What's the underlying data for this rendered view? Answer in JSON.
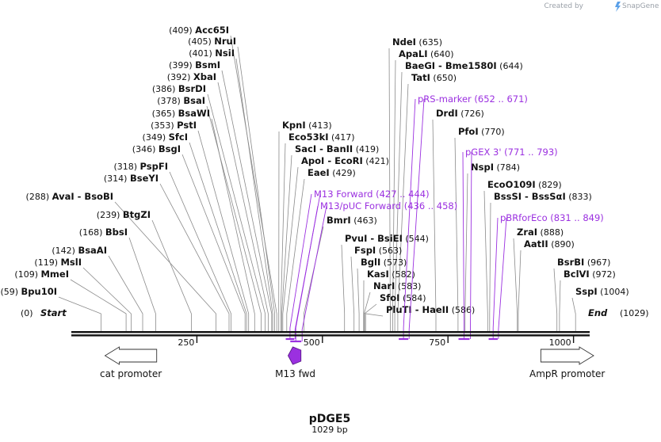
{
  "credit": {
    "prefix": "Created by",
    "brand": "SnapGene",
    "icon": "snapgene-logo-icon"
  },
  "plasmid": {
    "name": "pDGE5",
    "length_label": "1029 bp",
    "length": 1029
  },
  "ends": {
    "start_label": "Start",
    "start_pos": "(0)",
    "end_label": "End",
    "end_pos": "(1029)"
  },
  "scale_ticks": [
    250,
    500,
    750,
    1000
  ],
  "enzymes": [
    {
      "name": "Bpu10I",
      "pos": 59
    },
    {
      "name": "MmeI",
      "pos": 109
    },
    {
      "name": "MslI",
      "pos": 119
    },
    {
      "name": "BsaAI",
      "pos": 142
    },
    {
      "name": "BbsI",
      "pos": 168
    },
    {
      "name": "BtgZI",
      "pos": 239
    },
    {
      "name": "AvaI - BsoBI",
      "pos": 288
    },
    {
      "name": "BseYI",
      "pos": 314
    },
    {
      "name": "PspFI",
      "pos": 318
    },
    {
      "name": "BsgI",
      "pos": 346
    },
    {
      "name": "SfcI",
      "pos": 349
    },
    {
      "name": "PstI",
      "pos": 353
    },
    {
      "name": "BsaWI",
      "pos": 365
    },
    {
      "name": "BsaI",
      "pos": 378
    },
    {
      "name": "BsrDI",
      "pos": 386
    },
    {
      "name": "XbaI",
      "pos": 392
    },
    {
      "name": "BsmI",
      "pos": 399
    },
    {
      "name": "NsiI",
      "pos": 401
    },
    {
      "name": "NruI",
      "pos": 405
    },
    {
      "name": "Acc65I",
      "pos": 409
    },
    {
      "name": "KpnI",
      "pos": 413
    },
    {
      "name": "Eco53kI",
      "pos": 417
    },
    {
      "name": "SacI - BanII",
      "pos": 419
    },
    {
      "name": "ApoI - EcoRI",
      "pos": 421
    },
    {
      "name": "EaeI",
      "pos": 429
    },
    {
      "name": "BmrI",
      "pos": 463
    },
    {
      "name": "PvuI - BsiEI",
      "pos": 544
    },
    {
      "name": "FspI",
      "pos": 563
    },
    {
      "name": "BglI",
      "pos": 573
    },
    {
      "name": "KasI",
      "pos": 582
    },
    {
      "name": "NarI",
      "pos": 583
    },
    {
      "name": "SfoI",
      "pos": 584
    },
    {
      "name": "PluTI - HaeII",
      "pos": 586
    },
    {
      "name": "NdeI",
      "pos": 635
    },
    {
      "name": "ApaLI",
      "pos": 640
    },
    {
      "name": "BaeGI - Bme1580I",
      "pos": 644
    },
    {
      "name": "TatI",
      "pos": 650
    },
    {
      "name": "DrdI",
      "pos": 726
    },
    {
      "name": "PfoI",
      "pos": 770
    },
    {
      "name": "NspI",
      "pos": 784
    },
    {
      "name": "EcoO109I",
      "pos": 829
    },
    {
      "name": "BssSI - BssSαI",
      "pos": 833
    },
    {
      "name": "ZraI",
      "pos": 888
    },
    {
      "name": "AatII",
      "pos": 890
    },
    {
      "name": "BsrBI",
      "pos": 967
    },
    {
      "name": "BclVI",
      "pos": 972
    },
    {
      "name": "SspI",
      "pos": 1004
    }
  ],
  "primers": [
    {
      "name": "M13 Forward",
      "range": "(427 .. 444)",
      "start": 427,
      "end": 444
    },
    {
      "name": "M13/pUC Forward",
      "range": "(436 .. 458)",
      "start": 436,
      "end": 458
    },
    {
      "name": "pRS-marker",
      "range": "(652 .. 671)",
      "start": 652,
      "end": 671
    },
    {
      "name": "pGEX 3'",
      "range": "(771 .. 793)",
      "start": 771,
      "end": 793
    },
    {
      "name": "pBRforEco",
      "range": "(831 .. 849)",
      "start": 831,
      "end": 849
    }
  ],
  "features": [
    {
      "name": "cat promoter",
      "direction": "reverse",
      "start": 67,
      "end": 170,
      "color": "#ffffff"
    },
    {
      "name": "M13 fwd",
      "direction": "reverse",
      "start": 438,
      "end": 454,
      "color": "#9b30e0"
    },
    {
      "name": "AmpR promoter",
      "direction": "forward",
      "start": 935,
      "end": 1040,
      "color": "#ffffff"
    }
  ],
  "colors": {
    "backbone": "#111111",
    "primer": "#9b30e0",
    "line": "#777777"
  }
}
